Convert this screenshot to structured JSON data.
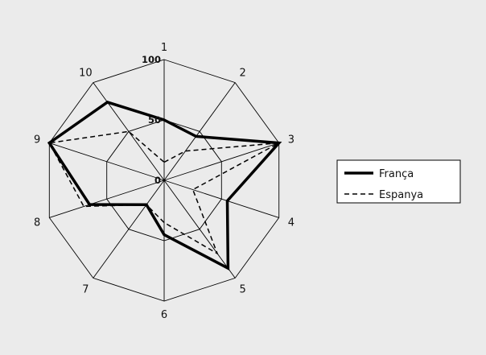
{
  "chart_data": {
    "type": "radar",
    "categories": [
      "1",
      "2",
      "3",
      "4",
      "5",
      "6",
      "7",
      "8",
      "9",
      "10"
    ],
    "radial_range": [
      0,
      100
    ],
    "radial_ticks": [
      {
        "value": 0,
        "label": "0"
      },
      {
        "value": 50,
        "label": "50"
      },
      {
        "value": 100,
        "label": "100"
      }
    ],
    "series": [
      {
        "name": "França",
        "style": "solid",
        "color": "#000000",
        "values": [
          50,
          45,
          100,
          55,
          90,
          45,
          25,
          65,
          100,
          80
        ]
      },
      {
        "name": "Espanya",
        "style": "dashed",
        "color": "#000000",
        "values": [
          15,
          30,
          100,
          25,
          75,
          35,
          25,
          70,
          100,
          50
        ]
      }
    ],
    "legend_position": "right",
    "grid": true
  }
}
